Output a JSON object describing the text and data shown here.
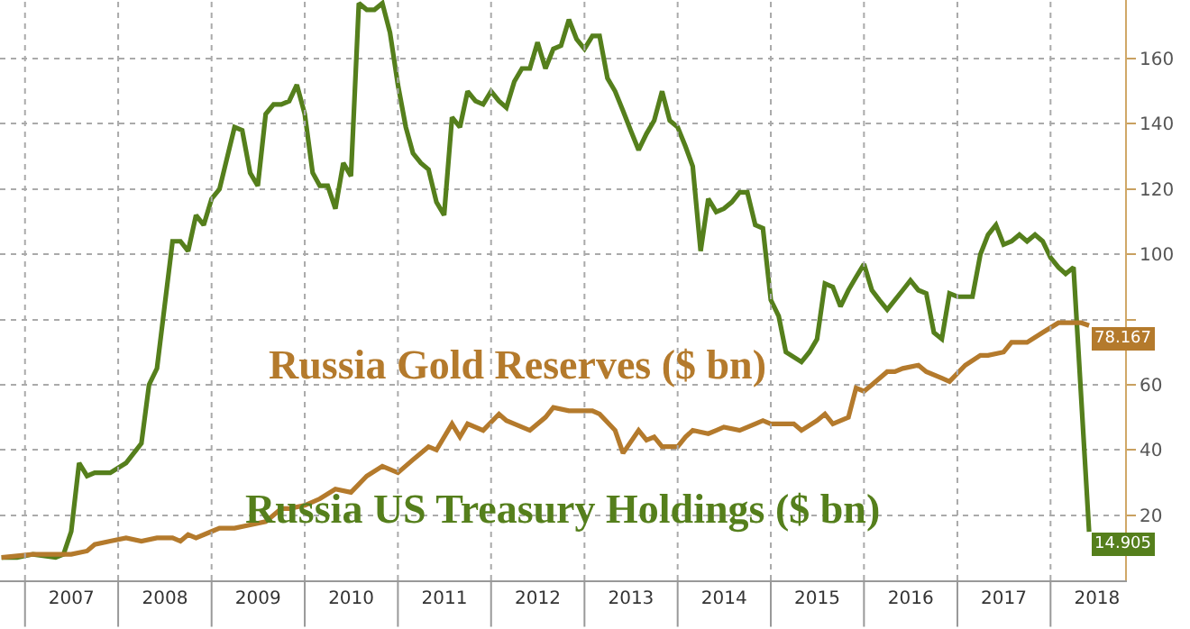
{
  "chart_data": {
    "type": "line",
    "xlim": [
      "2006-09-25",
      "2018-10-20"
    ],
    "xticks": [
      {
        "value": "2007-01-01",
        "label": null
      },
      {
        "value": "2007-07-02",
        "label": "2007"
      },
      {
        "value": "2008-01-01",
        "label": null
      },
      {
        "value": "2008-07-02",
        "label": "2008"
      },
      {
        "value": "2009-01-01",
        "label": null
      },
      {
        "value": "2009-07-02",
        "label": "2009"
      },
      {
        "value": "2010-01-01",
        "label": null
      },
      {
        "value": "2010-07-02",
        "label": "2010"
      },
      {
        "value": "2011-01-01",
        "label": null
      },
      {
        "value": "2011-07-02",
        "label": "2011"
      },
      {
        "value": "2012-01-01",
        "label": null
      },
      {
        "value": "2012-07-02",
        "label": "2012"
      },
      {
        "value": "2013-01-01",
        "label": null
      },
      {
        "value": "2013-07-02",
        "label": "2013"
      },
      {
        "value": "2014-01-01",
        "label": null
      },
      {
        "value": "2014-07-02",
        "label": "2014"
      },
      {
        "value": "2015-01-01",
        "label": null
      },
      {
        "value": "2015-07-02",
        "label": "2015"
      },
      {
        "value": "2016-01-01",
        "label": null
      },
      {
        "value": "2016-07-02",
        "label": "2016"
      },
      {
        "value": "2017-01-01",
        "label": null
      },
      {
        "value": "2017-07-02",
        "label": "2017"
      },
      {
        "value": "2018-01-01",
        "label": null
      },
      {
        "value": "2018-07-02",
        "label": "2018"
      }
    ],
    "ylim": [
      0,
      178
    ],
    "yticks": [
      20,
      40,
      60,
      {
        "value": 80,
        "label": null
      },
      100,
      120,
      140,
      160
    ],
    "grid": true,
    "legend": false,
    "marker": "none",
    "line_style": "solid",
    "series": [
      {
        "name": "Russia US Treasury Holdings ($ bn)",
        "color": "#557f1c",
        "x": [
          "2006-10",
          "2006-12",
          "2007-02",
          "2007-05",
          "2007-06",
          "2007-07",
          "2007-08",
          "2007-09",
          "2007-10",
          "2007-11",
          "2007-12",
          "2008-02",
          "2008-04",
          "2008-05",
          "2008-06",
          "2008-08",
          "2008-09",
          "2008-10",
          "2008-11",
          "2008-12",
          "2009-01",
          "2009-02",
          "2009-04",
          "2009-05",
          "2009-06",
          "2009-07",
          "2009-08",
          "2009-09",
          "2009-10",
          "2009-11",
          "2009-12",
          "2010-01",
          "2010-02",
          "2010-03",
          "2010-04",
          "2010-05",
          "2010-06",
          "2010-07",
          "2010-08",
          "2010-09",
          "2010-10",
          "2010-11",
          "2010-12",
          "2011-01",
          "2011-02",
          "2011-03",
          "2011-04",
          "2011-05",
          "2011-06",
          "2011-07",
          "2011-08",
          "2011-09",
          "2011-10",
          "2011-11",
          "2011-12",
          "2012-01",
          "2012-02",
          "2012-03",
          "2012-04",
          "2012-05",
          "2012-06",
          "2012-07",
          "2012-08",
          "2012-09",
          "2012-10",
          "2012-11",
          "2012-12",
          "2013-01",
          "2013-02",
          "2013-03",
          "2013-04",
          "2013-05",
          "2013-06",
          "2013-07",
          "2013-08",
          "2013-09",
          "2013-10",
          "2013-11",
          "2013-12",
          "2014-01",
          "2014-02",
          "2014-03",
          "2014-04",
          "2014-05",
          "2014-06",
          "2014-07",
          "2014-08",
          "2014-09",
          "2014-10",
          "2014-11",
          "2014-12",
          "2015-01",
          "2015-02",
          "2015-03",
          "2015-05",
          "2015-06",
          "2015-07",
          "2015-08",
          "2015-09",
          "2015-10",
          "2015-11",
          "2015-12",
          "2016-01",
          "2016-02",
          "2016-03",
          "2016-04",
          "2016-06",
          "2016-07",
          "2016-08",
          "2016-09",
          "2016-10",
          "2016-11",
          "2016-12",
          "2017-01",
          "2017-03",
          "2017-04",
          "2017-05",
          "2017-06",
          "2017-07",
          "2017-08",
          "2017-09",
          "2017-10",
          "2017-11",
          "2017-12",
          "2018-01",
          "2018-02",
          "2018-03",
          "2018-04",
          "2018-06"
        ],
        "values": [
          7,
          7,
          8,
          7,
          8,
          15,
          36,
          32,
          33,
          33,
          33,
          36,
          42,
          60,
          65,
          104,
          104,
          101,
          112,
          109,
          117,
          120,
          139,
          138,
          125,
          121,
          143,
          146,
          146,
          147,
          152,
          143,
          125,
          121,
          121,
          114,
          128,
          124,
          177,
          175,
          175,
          177,
          168,
          152,
          139,
          131,
          128,
          126,
          116,
          112,
          142,
          139,
          150,
          147,
          146,
          150,
          147,
          145,
          153,
          157,
          157,
          165,
          157,
          163,
          164,
          172,
          166,
          163,
          167,
          167,
          154,
          150,
          144,
          138,
          132,
          137,
          141,
          150,
          141,
          139,
          133,
          127,
          101,
          117,
          113,
          114,
          116,
          119,
          119,
          109,
          108,
          86,
          81,
          70,
          67,
          70,
          74,
          91,
          90,
          84,
          89,
          93,
          97,
          89,
          86,
          83,
          89,
          92,
          89,
          88,
          76,
          74,
          88,
          87,
          87,
          100,
          106,
          109,
          103,
          104,
          106,
          104,
          106,
          104,
          99,
          96,
          94,
          96,
          14.905
        ],
        "value_labels": [
          null,
          null,
          null,
          null,
          null,
          null,
          null,
          null,
          null,
          null,
          null,
          null,
          null,
          null,
          null,
          null,
          null,
          null,
          null,
          null,
          null,
          null,
          null,
          null,
          null,
          null,
          null,
          null,
          null,
          null,
          null,
          null,
          null,
          null,
          null,
          null,
          null,
          null,
          null,
          null,
          null,
          null,
          null,
          null,
          null,
          null,
          null,
          null,
          null,
          null,
          null,
          null,
          null,
          null,
          null,
          null,
          null,
          null,
          null,
          null,
          null,
          null,
          null,
          null,
          null,
          null,
          null,
          null,
          null,
          null,
          null,
          null,
          null,
          null,
          null,
          null,
          null,
          null,
          null,
          null,
          null,
          null,
          null,
          null,
          null,
          null,
          null,
          null,
          null,
          null,
          null,
          null,
          null,
          null,
          null,
          null,
          null,
          null,
          null,
          null,
          null,
          null,
          null,
          null,
          null,
          null,
          null,
          null,
          null,
          null,
          null,
          null,
          null,
          null,
          null,
          null,
          null,
          null,
          null,
          null,
          null,
          null,
          null,
          null,
          null,
          null,
          null,
          null,
          "14.905"
        ]
      },
      {
        "name": "Russia Gold Reserves ($ bn)",
        "color": "#b47a2c",
        "x": [
          "2006-10",
          "2007-02",
          "2007-05",
          "2007-07",
          "2007-09",
          "2007-10",
          "2007-12",
          "2008-02",
          "2008-04",
          "2008-06",
          "2008-08",
          "2008-09",
          "2008-10",
          "2008-11",
          "2009-01",
          "2009-02",
          "2009-04",
          "2009-06",
          "2009-08",
          "2009-10",
          "2009-11",
          "2010-01",
          "2010-03",
          "2010-05",
          "2010-07",
          "2010-09",
          "2010-11",
          "2011-01",
          "2011-03",
          "2011-05",
          "2011-06",
          "2011-08",
          "2011-09",
          "2011-10",
          "2011-12",
          "2012-02",
          "2012-03",
          "2012-04",
          "2012-06",
          "2012-08",
          "2012-09",
          "2012-11",
          "2013-02",
          "2013-03",
          "2013-05",
          "2013-06",
          "2013-08",
          "2013-09",
          "2013-10",
          "2013-11",
          "2014-01",
          "2014-02",
          "2014-03",
          "2014-05",
          "2014-06",
          "2014-07",
          "2014-09",
          "2014-11",
          "2014-12",
          "2015-01",
          "2015-03",
          "2015-04",
          "2015-05",
          "2015-07",
          "2015-08",
          "2015-09",
          "2015-11",
          "2015-12",
          "2016-01",
          "2016-02",
          "2016-04",
          "2016-05",
          "2016-06",
          "2016-08",
          "2016-09",
          "2016-11",
          "2016-12",
          "2017-02",
          "2017-04",
          "2017-05",
          "2017-07",
          "2017-08",
          "2017-10",
          "2017-12",
          "2018-02",
          "2018-04",
          "2018-05",
          "2018-06"
        ],
        "values": [
          7,
          8,
          8,
          8,
          9,
          11,
          12,
          13,
          12,
          13,
          13,
          12,
          14,
          13,
          15,
          16,
          16,
          17,
          18,
          22,
          22,
          23,
          25,
          28,
          27,
          32,
          35,
          33,
          37,
          41,
          40,
          48,
          44,
          48,
          46,
          51,
          49,
          48,
          46,
          50,
          53,
          52,
          52,
          51,
          46,
          39,
          46,
          43,
          44,
          41,
          41,
          44,
          46,
          45,
          46,
          47,
          46,
          48,
          49,
          48,
          48,
          48,
          46,
          49,
          51,
          48,
          50,
          59,
          58,
          60,
          64,
          64,
          65,
          66,
          64,
          62,
          61,
          66,
          69,
          69,
          70,
          73,
          73,
          76,
          79,
          79,
          79,
          78.167
        ],
        "value_labels": [
          null,
          null,
          null,
          null,
          null,
          null,
          null,
          null,
          null,
          null,
          null,
          null,
          null,
          null,
          null,
          null,
          null,
          null,
          null,
          null,
          null,
          null,
          null,
          null,
          null,
          null,
          null,
          null,
          null,
          null,
          null,
          null,
          null,
          null,
          null,
          null,
          null,
          null,
          null,
          null,
          null,
          null,
          null,
          null,
          null,
          null,
          null,
          null,
          null,
          null,
          null,
          null,
          null,
          null,
          null,
          null,
          null,
          null,
          null,
          null,
          null,
          null,
          null,
          null,
          null,
          null,
          null,
          null,
          null,
          null,
          null,
          null,
          null,
          null,
          null,
          null,
          null,
          null,
          null,
          null,
          null,
          null,
          null,
          null,
          null,
          null,
          null,
          "78.167"
        ]
      }
    ]
  }
}
